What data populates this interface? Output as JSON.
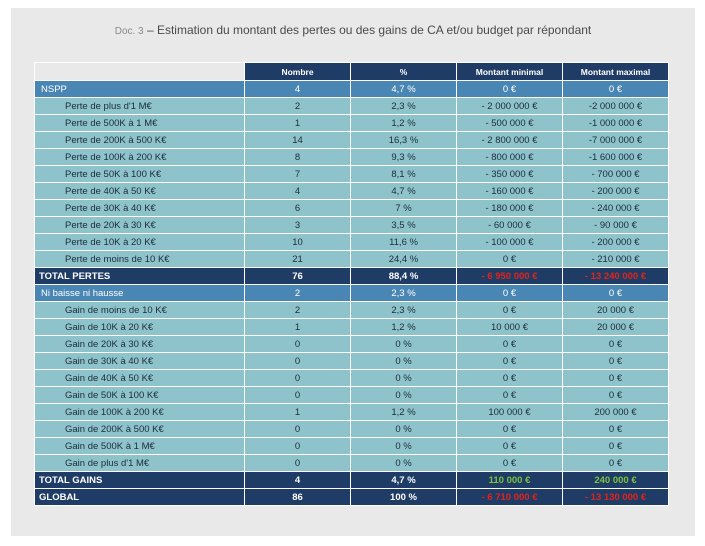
{
  "title": {
    "doc": "Doc. 3",
    "text": " – Estimation du montant des pertes ou des gains de CA et/ou budget par répondant"
  },
  "headers": [
    "Nombre",
    "%",
    "Montant minimal",
    "Montant maximal"
  ],
  "rows": [
    {
      "kind": "cat",
      "label": "NSPP",
      "n": "4",
      "pct": "4,7 %",
      "min": "0 €",
      "max": "0 €"
    },
    {
      "kind": "sub",
      "label": "Perte de plus d'1 M€",
      "n": "2",
      "pct": "2,3 %",
      "min": "- 2 000 000 €",
      "max": "-2 000 000 €"
    },
    {
      "kind": "sub",
      "label": "Perte de 500K à 1 M€",
      "n": "1",
      "pct": "1,2 %",
      "min": "- 500 000 €",
      "max": "-1 000 000 €"
    },
    {
      "kind": "sub",
      "label": "Perte de 200K à 500 K€",
      "n": "14",
      "pct": "16,3 %",
      "min": "- 2 800 000 €",
      "max": "-7 000 000 €"
    },
    {
      "kind": "sub",
      "label": "Perte de 100K à 200 K€",
      "n": "8",
      "pct": "9,3 %",
      "min": "- 800 000 €",
      "max": "-1 600 000 €"
    },
    {
      "kind": "sub",
      "label": "Perte de 50K à 100 K€",
      "n": "7",
      "pct": "8,1 %",
      "min": "- 350 000 €",
      "max": "- 700 000 €"
    },
    {
      "kind": "sub",
      "label": "Perte de 40K à 50 K€",
      "n": "4",
      "pct": "4,7 %",
      "min": "- 160 000 €",
      "max": "- 200 000 €"
    },
    {
      "kind": "sub",
      "label": "Perte de 30K à 40 K€",
      "n": "6",
      "pct": "7 %",
      "min": "- 180 000 €",
      "max": "- 240 000 €"
    },
    {
      "kind": "sub",
      "label": "Perte de 20K à 30 K€",
      "n": "3",
      "pct": "3,5 %",
      "min": "- 60 000 €",
      "max": "- 90 000 €"
    },
    {
      "kind": "sub",
      "label": "Perte de 10K à 20 K€",
      "n": "10",
      "pct": "11,6 %",
      "min": "- 100 000 €",
      "max": "- 200 000 €"
    },
    {
      "kind": "sub",
      "label": "Perte de moins de 10 K€",
      "n": "21",
      "pct": "24,4 %",
      "min": "0 €",
      "max": "- 210 000 €"
    },
    {
      "kind": "tot",
      "label": "TOTAL PERTES",
      "n": "76",
      "pct": "88,4 %",
      "min": "- 6 950 000 €",
      "max": "- 13 240 000 €",
      "minColor": "red",
      "maxColor": "red"
    },
    {
      "kind": "cat",
      "label": "Ni baisse ni hausse",
      "n": "2",
      "pct": "2,3 %",
      "min": "0 €",
      "max": "0 €"
    },
    {
      "kind": "sub",
      "label": "Gain de moins de 10 K€",
      "n": "2",
      "pct": "2,3 %",
      "min": "0 €",
      "max": "20 000 €"
    },
    {
      "kind": "sub",
      "label": "Gain de 10K à 20 K€",
      "n": "1",
      "pct": "1,2 %",
      "min": "10 000 €",
      "max": "20 000 €"
    },
    {
      "kind": "sub",
      "label": "Gain de 20K à 30 K€",
      "n": "0",
      "pct": "0 %",
      "min": "0 €",
      "max": "0 €"
    },
    {
      "kind": "sub",
      "label": "Gain de 30K à 40 K€",
      "n": "0",
      "pct": "0 %",
      "min": "0 €",
      "max": "0 €"
    },
    {
      "kind": "sub",
      "label": "Gain de 40K à 50 K€",
      "n": "0",
      "pct": "0 %",
      "min": "0 €",
      "max": "0 €"
    },
    {
      "kind": "sub",
      "label": "Gain de 50K à 100 K€",
      "n": "0",
      "pct": "0 %",
      "min": "0 €",
      "max": "0 €"
    },
    {
      "kind": "sub",
      "label": "Gain de 100K à 200 K€",
      "n": "1",
      "pct": "1,2 %",
      "min": "100 000 €",
      "max": "200 000 €"
    },
    {
      "kind": "sub",
      "label": "Gain de 200K à 500 K€",
      "n": "0",
      "pct": "0 %",
      "min": "0 €",
      "max": "0 €"
    },
    {
      "kind": "sub",
      "label": "Gain de 500K à 1 M€",
      "n": "0",
      "pct": "0 %",
      "min": "0 €",
      "max": "0 €"
    },
    {
      "kind": "sub",
      "label": "Gain de plus d'1 M€",
      "n": "0",
      "pct": "0 %",
      "min": "0 €",
      "max": "0 €"
    },
    {
      "kind": "tot",
      "label": "TOTAL GAINS",
      "n": "4",
      "pct": "4,7 %",
      "min": "110 000 €",
      "max": "240 000 €",
      "minColor": "green",
      "maxColor": "green"
    },
    {
      "kind": "tot",
      "label": "GLOBAL",
      "n": "86",
      "pct": "100 %",
      "min": "- 6 710 000 €",
      "max": "- 13 130 000 €",
      "minColor": "red",
      "maxColor": "red"
    }
  ],
  "colors": {
    "header": "#1f3c66",
    "category": "#4a86b4",
    "subrow": "#8ec3cc",
    "negative": "#e2231a",
    "positive": "#7cc242"
  }
}
